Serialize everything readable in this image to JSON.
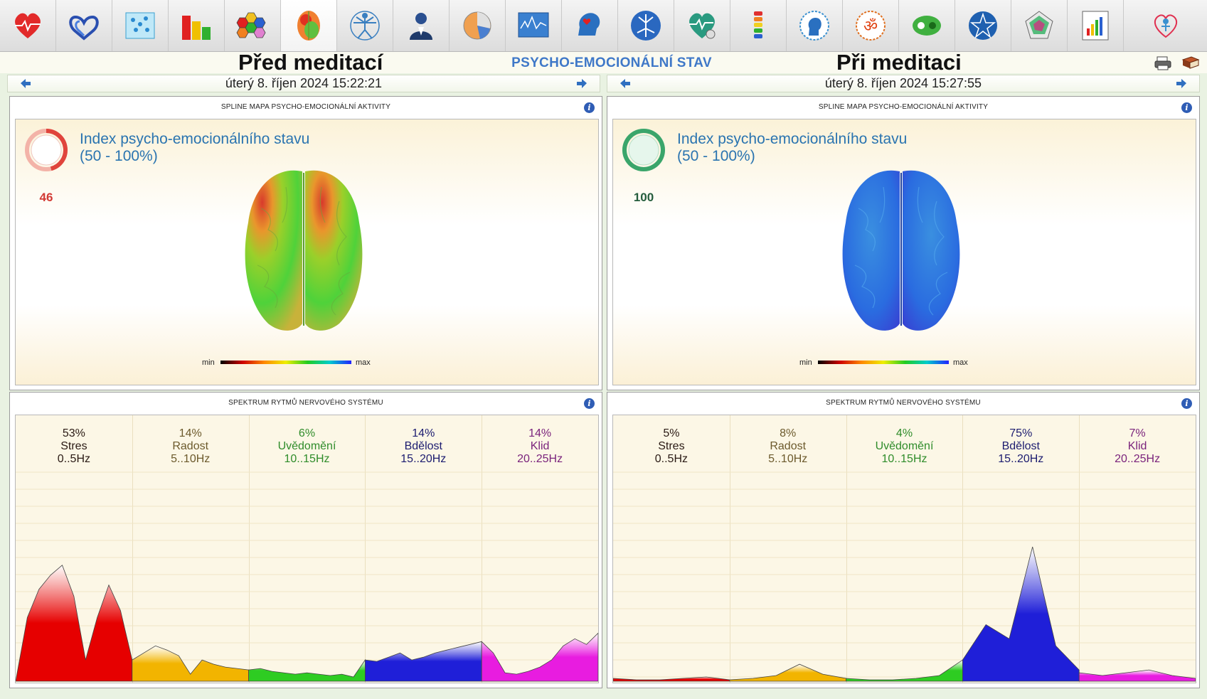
{
  "toolbar": {
    "buttons": [
      {
        "icon": "heart-icon"
      },
      {
        "icon": "double-heart-icon"
      },
      {
        "icon": "grid-chart-icon"
      },
      {
        "icon": "bar-chart-icon"
      },
      {
        "icon": "hexagon-cluster-icon"
      },
      {
        "icon": "brain-icon",
        "active": true
      },
      {
        "icon": "vitruvian-man-icon"
      },
      {
        "icon": "doctor-icon"
      },
      {
        "icon": "pie-chart-icon"
      },
      {
        "icon": "monitor-graph-icon"
      },
      {
        "icon": "head-heart-icon"
      },
      {
        "icon": "neuron-icon"
      },
      {
        "icon": "heart-pulse-icon"
      },
      {
        "icon": "spine-icon"
      },
      {
        "icon": "head-profile-icon"
      },
      {
        "icon": "om-icon"
      },
      {
        "icon": "yin-yang-icon"
      },
      {
        "icon": "pentagram-icon"
      },
      {
        "icon": "radar-pentagon-icon"
      },
      {
        "icon": "report-chart-icon"
      },
      {
        "icon": "person-heart-icon"
      }
    ]
  },
  "header": {
    "left_title": "Před meditací",
    "center_title": "PSYCHO-EMOCIONÁLNÍ STAV",
    "right_title": "Při meditaci"
  },
  "left": {
    "date": "úterý 8. říjen 2024 15:22:21",
    "map": {
      "title": "SPLINE MAPA PSYCHO-EMOCIONÁLNÍ AKTIVITY",
      "index_value": "46",
      "index_color": "#e0443c",
      "index_label_1": "Index psycho-emocionálního stavu",
      "index_label_2": "(50 - 100%)",
      "scale_min": "min",
      "scale_max": "max"
    },
    "spectrum": {
      "title": "SPEKTRUM RYTMŮ NERVOVÉHO SYSTÉMU",
      "bands": [
        {
          "pct": "53%",
          "name": "Stres",
          "range": "0..5Hz",
          "color": "#2a1a14"
        },
        {
          "pct": "14%",
          "name": "Radost",
          "range": "5..10Hz",
          "color": "#6c5a2c"
        },
        {
          "pct": "6%",
          "name": "Uvědomění",
          "range": "10..15Hz",
          "color": "#2f8c2a"
        },
        {
          "pct": "14%",
          "name": "Bdělost",
          "range": "15..20Hz",
          "color": "#1c1c70"
        },
        {
          "pct": "14%",
          "name": "Klid",
          "range": "20..25Hz",
          "color": "#7a237c"
        }
      ]
    }
  },
  "right": {
    "date": "úterý 8. říjen 2024 15:27:55",
    "map": {
      "title": "SPLINE MAPA PSYCHO-EMOCIONÁLNÍ AKTIVITY",
      "index_value": "100",
      "index_color": "#3aa56a",
      "index_label_1": "Index psycho-emocionálního stavu",
      "index_label_2": "(50 - 100%)",
      "scale_min": "min",
      "scale_max": "max"
    },
    "spectrum": {
      "title": "SPEKTRUM RYTMŮ NERVOVÉHO SYSTÉMU",
      "bands": [
        {
          "pct": "5%",
          "name": "Stres",
          "range": "0..5Hz",
          "color": "#2a1a14"
        },
        {
          "pct": "8%",
          "name": "Radost",
          "range": "5..10Hz",
          "color": "#6c5a2c"
        },
        {
          "pct": "4%",
          "name": "Uvědomění",
          "range": "10..15Hz",
          "color": "#2f8c2a"
        },
        {
          "pct": "75%",
          "name": "Bdělost",
          "range": "15..20Hz",
          "color": "#1c1c70"
        },
        {
          "pct": "7%",
          "name": "Klid",
          "range": "20..25Hz",
          "color": "#7a237c"
        }
      ]
    }
  },
  "colors": {
    "stres": "#e60000",
    "radost": "#f2b400",
    "uvedomeni": "#2ecc22",
    "bdelost": "#1f1fd8",
    "klid": "#e81ce0"
  },
  "chart_data": [
    {
      "type": "area",
      "title": "SPEKTRUM RYTMŮ NERVOVÉHO SYSTÉMU",
      "xlabel": "",
      "ylabel": "",
      "series": [
        {
          "name": "Stres",
          "x": [
            0,
            0.5,
            1,
            1.5,
            2,
            2.5,
            3,
            3.5,
            4,
            4.5,
            5
          ],
          "values": [
            0,
            45,
            65,
            75,
            82,
            60,
            15,
            45,
            68,
            50,
            15
          ]
        },
        {
          "name": "Radost",
          "x": [
            5,
            5.5,
            6,
            6.5,
            7,
            7.5,
            8,
            8.5,
            9,
            9.5,
            10
          ],
          "values": [
            15,
            20,
            25,
            22,
            18,
            5,
            15,
            12,
            10,
            9,
            8
          ]
        },
        {
          "name": "Uvědomění",
          "x": [
            10,
            10.5,
            11,
            11.5,
            12,
            12.5,
            13,
            13.5,
            14,
            14.5,
            15
          ],
          "values": [
            8,
            9,
            7,
            6,
            5,
            6,
            5,
            4,
            5,
            3,
            15
          ]
        },
        {
          "name": "Bdělost",
          "x": [
            15,
            15.5,
            16,
            16.5,
            17,
            17.5,
            18,
            18.5,
            19,
            19.5,
            20
          ],
          "values": [
            15,
            14,
            17,
            20,
            15,
            17,
            20,
            22,
            24,
            26,
            28
          ]
        },
        {
          "name": "Klid",
          "x": [
            20,
            20.5,
            21,
            21.5,
            22,
            22.5,
            23,
            23.5,
            24,
            24.5,
            25
          ],
          "values": [
            28,
            20,
            6,
            5,
            7,
            10,
            15,
            25,
            30,
            26,
            34
          ]
        }
      ]
    },
    {
      "type": "area",
      "title": "SPEKTRUM RYTMŮ NERVOVÉHO SYSTÉMU",
      "xlabel": "",
      "ylabel": "",
      "series": [
        {
          "name": "Stres",
          "x": [
            0,
            1,
            2,
            3,
            4,
            5
          ],
          "values": [
            2,
            1,
            1,
            2,
            3,
            1
          ]
        },
        {
          "name": "Radost",
          "x": [
            5,
            6,
            7,
            8,
            9,
            10
          ],
          "values": [
            1,
            2,
            4,
            12,
            5,
            2
          ]
        },
        {
          "name": "Uvědomění",
          "x": [
            10,
            11,
            12,
            13,
            14,
            15
          ],
          "values": [
            2,
            1,
            1,
            2,
            4,
            15
          ]
        },
        {
          "name": "Bdělost",
          "x": [
            15,
            16,
            17,
            18,
            19,
            20
          ],
          "values": [
            15,
            40,
            30,
            95,
            25,
            8
          ]
        },
        {
          "name": "Klid",
          "x": [
            20,
            21,
            22,
            23,
            24,
            25
          ],
          "values": [
            6,
            4,
            6,
            8,
            4,
            2
          ]
        }
      ]
    }
  ]
}
